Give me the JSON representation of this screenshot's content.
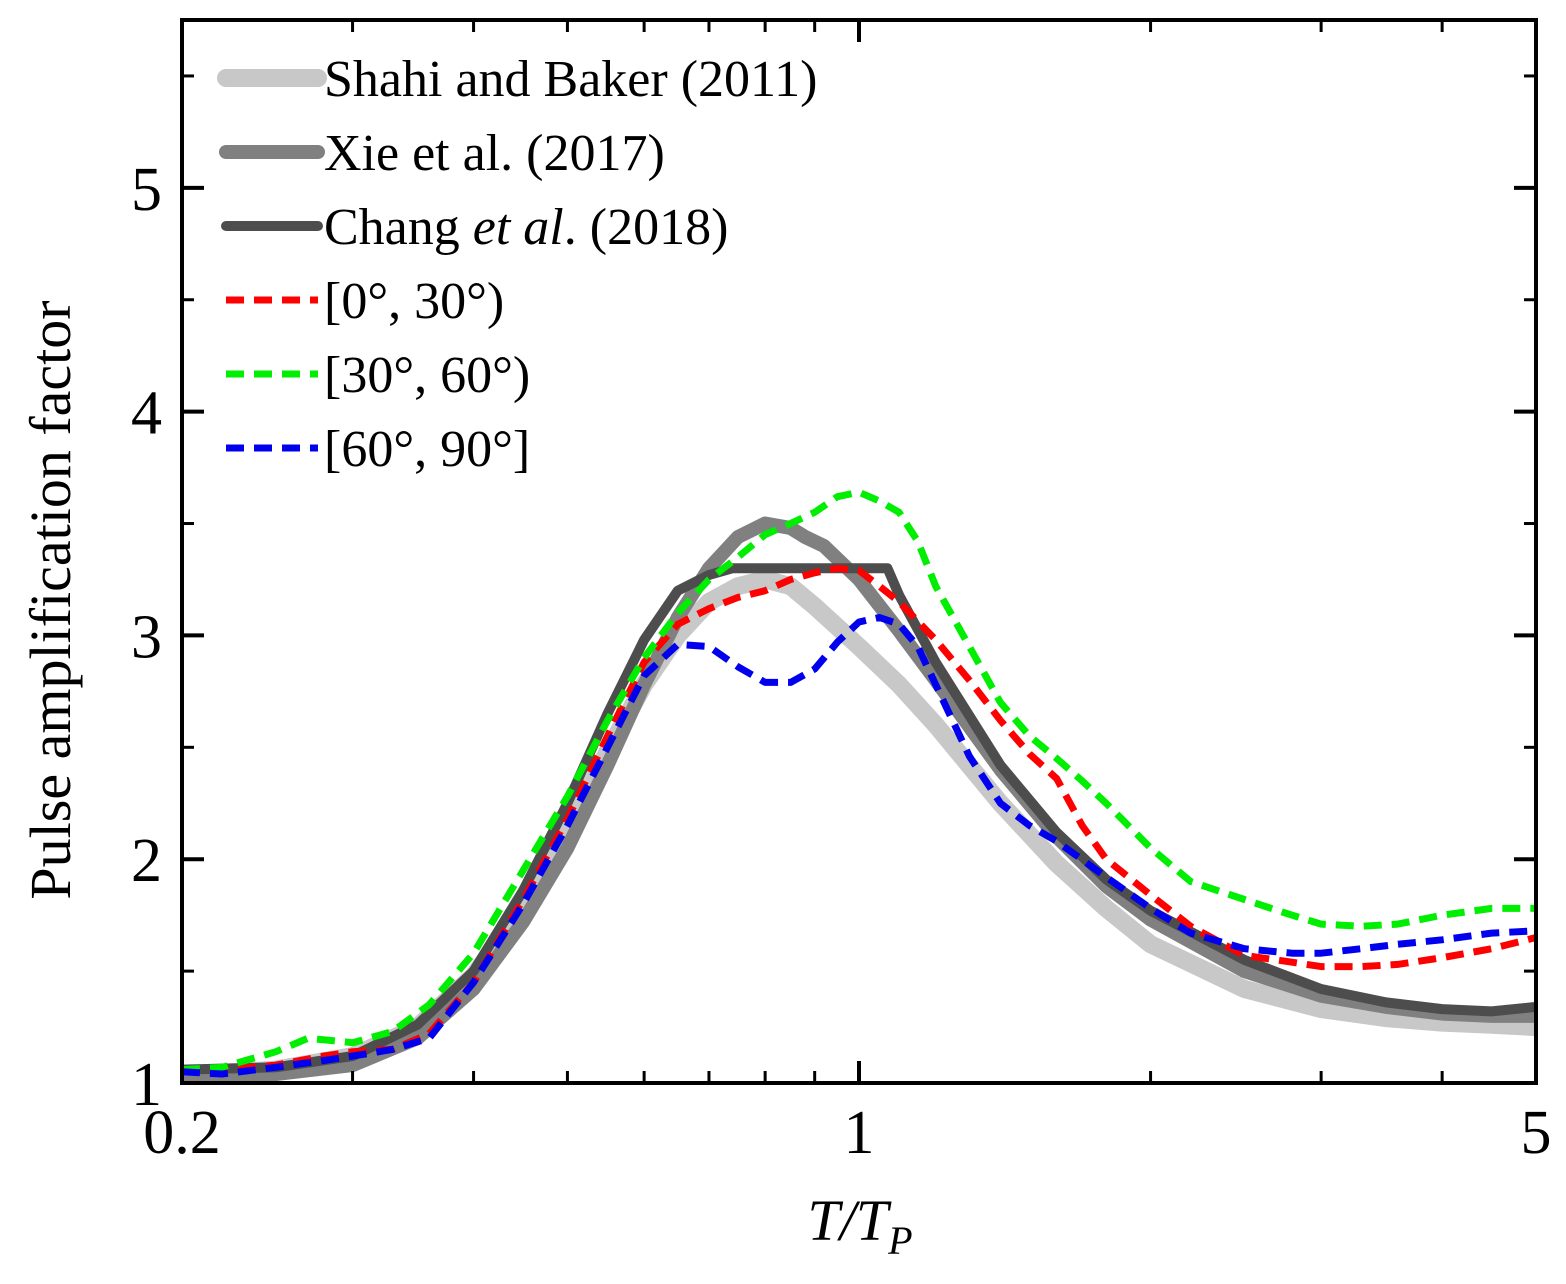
{
  "chart_data": {
    "type": "line",
    "xlabel": "T/T",
    "xlabel_sub": "P",
    "ylabel": "Pulse amplification factor",
    "xscale": "log",
    "xlim": [
      0.2,
      5
    ],
    "ylim": [
      1,
      5.75
    ],
    "xticks": [
      0.2,
      1,
      5
    ],
    "xtick_labels": [
      "0.2",
      "1",
      "5"
    ],
    "yticks": [
      1,
      2,
      3,
      4,
      5
    ],
    "ytick_labels": [
      "1",
      "2",
      "3",
      "4",
      "5"
    ],
    "grid": false,
    "legend_position": "top-left",
    "series": [
      {
        "name": "Shahi and Baker (2011)",
        "name_parts": [
          {
            "t": "Shahi and Baker (2011)",
            "italic": false
          }
        ],
        "color": "#c8c8c8",
        "dash": "solid",
        "width": 18,
        "x": [
          0.2,
          0.25,
          0.3,
          0.35,
          0.4,
          0.45,
          0.5,
          0.55,
          0.6,
          0.65,
          0.7,
          0.75,
          0.8,
          0.85,
          0.9,
          1.0,
          1.1,
          1.2,
          1.4,
          1.6,
          1.8,
          2.0,
          2.5,
          3.0,
          3.5,
          4.0,
          4.5,
          5.0
        ],
        "y": [
          1.03,
          1.06,
          1.12,
          1.25,
          1.48,
          1.78,
          2.12,
          2.48,
          2.78,
          3.0,
          3.15,
          3.22,
          3.25,
          3.22,
          3.13,
          2.95,
          2.78,
          2.6,
          2.25,
          1.98,
          1.78,
          1.62,
          1.42,
          1.33,
          1.29,
          1.27,
          1.26,
          1.25
        ]
      },
      {
        "name": "Xie et al. (2017)",
        "name_parts": [
          {
            "t": "Xie et al. (2017)",
            "italic": false
          }
        ],
        "color": "#808080",
        "dash": "solid",
        "width": 14,
        "x": [
          0.2,
          0.25,
          0.3,
          0.35,
          0.4,
          0.45,
          0.5,
          0.55,
          0.6,
          0.65,
          0.7,
          0.75,
          0.8,
          0.85,
          0.88,
          0.92,
          1.0,
          1.1,
          1.2,
          1.4,
          1.6,
          1.8,
          2.0,
          2.5,
          3.0,
          3.5,
          4.0,
          4.5,
          5.0
        ],
        "y": [
          1.02,
          1.04,
          1.08,
          1.2,
          1.42,
          1.72,
          2.05,
          2.42,
          2.78,
          3.08,
          3.3,
          3.44,
          3.5,
          3.48,
          3.44,
          3.4,
          3.25,
          3.02,
          2.8,
          2.4,
          2.1,
          1.88,
          1.73,
          1.5,
          1.39,
          1.34,
          1.31,
          1.3,
          1.3
        ]
      },
      {
        "name": "Chang et al. (2018)",
        "name_parts": [
          {
            "t": "Chang ",
            "italic": false
          },
          {
            "t": "et al",
            "italic": true
          },
          {
            "t": ". (2018)",
            "italic": false
          }
        ],
        "color": "#4d4d4d",
        "dash": "solid",
        "width": 10,
        "x": [
          0.2,
          0.25,
          0.3,
          0.35,
          0.4,
          0.45,
          0.5,
          0.55,
          0.6,
          0.65,
          0.7,
          0.74,
          1.07,
          1.1,
          1.2,
          1.4,
          1.6,
          1.8,
          2.0,
          2.5,
          3.0,
          3.5,
          4.0,
          4.5,
          5.0
        ],
        "y": [
          1.06,
          1.07,
          1.12,
          1.26,
          1.5,
          1.86,
          2.25,
          2.65,
          2.98,
          3.2,
          3.27,
          3.3,
          3.3,
          3.18,
          2.88,
          2.42,
          2.12,
          1.91,
          1.77,
          1.55,
          1.42,
          1.36,
          1.33,
          1.32,
          1.34
        ]
      },
      {
        "name": "[0°, 30°)",
        "name_parts": [
          {
            "t": "[0°, 30°)",
            "italic": false
          }
        ],
        "color": "#ff0000",
        "dash": "dashed",
        "width": 7,
        "x": [
          0.2,
          0.22,
          0.25,
          0.28,
          0.3,
          0.33,
          0.36,
          0.4,
          0.45,
          0.5,
          0.55,
          0.6,
          0.65,
          0.7,
          0.75,
          0.8,
          0.85,
          0.9,
          0.95,
          1.0,
          1.05,
          1.1,
          1.2,
          1.3,
          1.4,
          1.5,
          1.6,
          1.7,
          1.8,
          2.0,
          2.2,
          2.5,
          2.8,
          3.0,
          3.3,
          3.6,
          4.0,
          4.5,
          5.0
        ],
        "y": [
          1.05,
          1.06,
          1.08,
          1.12,
          1.14,
          1.15,
          1.22,
          1.45,
          1.82,
          2.18,
          2.55,
          2.88,
          3.05,
          3.12,
          3.17,
          3.2,
          3.25,
          3.28,
          3.3,
          3.29,
          3.22,
          3.15,
          2.98,
          2.8,
          2.62,
          2.47,
          2.36,
          2.15,
          2.0,
          1.84,
          1.7,
          1.57,
          1.54,
          1.52,
          1.52,
          1.53,
          1.56,
          1.6,
          1.65
        ]
      },
      {
        "name": "[30°, 60°)",
        "name_parts": [
          {
            "t": "[30°, 60°)",
            "italic": false
          }
        ],
        "color": "#00ee00",
        "dash": "dashed",
        "width": 7,
        "x": [
          0.2,
          0.22,
          0.25,
          0.27,
          0.3,
          0.33,
          0.36,
          0.4,
          0.45,
          0.5,
          0.55,
          0.6,
          0.65,
          0.7,
          0.75,
          0.8,
          0.85,
          0.9,
          0.95,
          1.0,
          1.05,
          1.1,
          1.15,
          1.2,
          1.3,
          1.4,
          1.5,
          1.6,
          1.7,
          1.8,
          2.0,
          2.2,
          2.5,
          2.8,
          3.0,
          3.3,
          3.6,
          4.0,
          4.5,
          5.0
        ],
        "y": [
          1.06,
          1.07,
          1.14,
          1.2,
          1.18,
          1.23,
          1.35,
          1.58,
          1.95,
          2.28,
          2.62,
          2.9,
          3.1,
          3.25,
          3.35,
          3.45,
          3.5,
          3.55,
          3.62,
          3.64,
          3.6,
          3.55,
          3.42,
          3.22,
          2.95,
          2.7,
          2.55,
          2.45,
          2.35,
          2.25,
          2.05,
          1.9,
          1.82,
          1.75,
          1.71,
          1.7,
          1.71,
          1.75,
          1.78,
          1.78
        ]
      },
      {
        "name": "[60°, 90°]",
        "name_parts": [
          {
            "t": "[60°, 90°]",
            "italic": false
          }
        ],
        "color": "#0000ee",
        "dash": "dashed",
        "width": 7,
        "x": [
          0.2,
          0.22,
          0.25,
          0.28,
          0.3,
          0.33,
          0.36,
          0.4,
          0.45,
          0.5,
          0.55,
          0.6,
          0.65,
          0.7,
          0.75,
          0.8,
          0.85,
          0.9,
          0.95,
          1.0,
          1.05,
          1.1,
          1.15,
          1.2,
          1.3,
          1.4,
          1.5,
          1.6,
          1.8,
          2.0,
          2.2,
          2.5,
          2.8,
          3.0,
          3.3,
          3.6,
          4.0,
          4.5,
          5.0
        ],
        "y": [
          1.05,
          1.04,
          1.07,
          1.1,
          1.12,
          1.15,
          1.2,
          1.45,
          1.8,
          2.15,
          2.5,
          2.82,
          2.96,
          2.95,
          2.86,
          2.79,
          2.79,
          2.85,
          2.97,
          3.06,
          3.08,
          3.05,
          2.95,
          2.78,
          2.46,
          2.25,
          2.15,
          2.08,
          1.92,
          1.78,
          1.67,
          1.6,
          1.58,
          1.58,
          1.6,
          1.62,
          1.64,
          1.67,
          1.68
        ]
      }
    ]
  }
}
